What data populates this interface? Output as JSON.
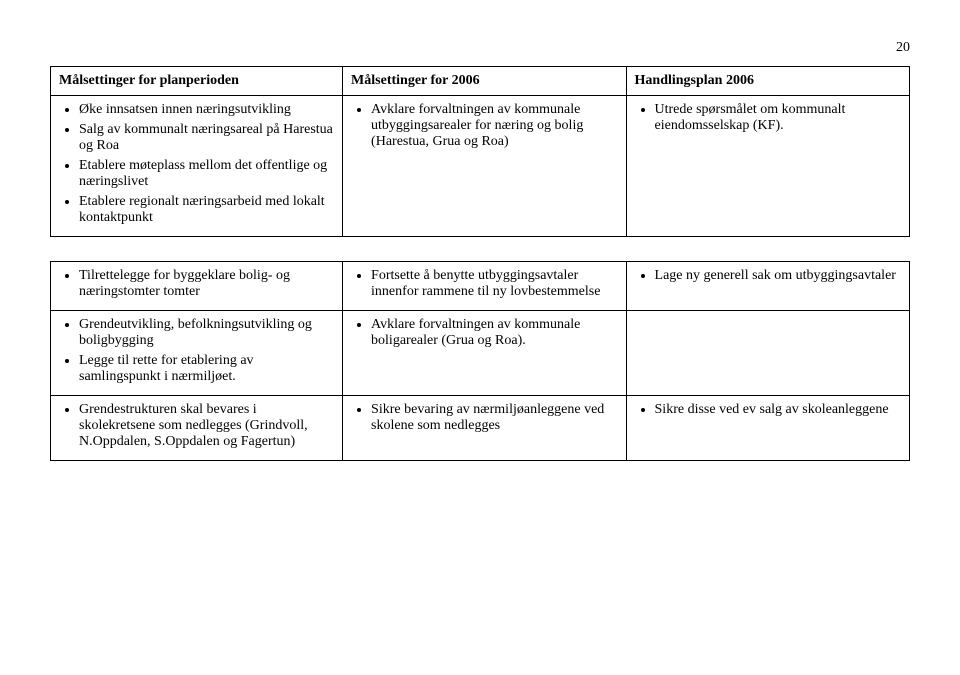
{
  "page_number": "20",
  "headers": {
    "col0": "Målsettinger for planperioden",
    "col1": "Målsettinger for 2006",
    "col2": "Handlingsplan 2006"
  },
  "row1": {
    "c0_i0": "Øke innsatsen innen næringsutvikling",
    "c0_i1": "Salg av kommunalt næringsareal på Harestua og Roa",
    "c0_i2": "Etablere møteplass mellom det offentlige og næringslivet",
    "c0_i3": "Etablere regionalt næringsarbeid med lokalt kontaktpunkt",
    "c1_i0": "Avklare forvaltningen av kommunale utbyggingsarealer for næring og bolig (Harestua, Grua og Roa)",
    "c2_i0": "Utrede spørsmålet om kommunalt eiendomsselskap (KF)."
  },
  "row2": {
    "c0_i0": "Tilrettelegge for byggeklare bolig- og næringstomter tomter",
    "c1_i0": "Fortsette å benytte utbyggingsavtaler innenfor rammene til ny lovbestemmelse",
    "c2_i0": "Lage ny generell sak om utbyggingsavtaler"
  },
  "row3": {
    "c0_i0": "Grendeutvikling, befolkningsutvikling og boligbygging",
    "c0_i1": "Legge til rette for etablering av samlingspunkt i nærmiljøet.",
    "c1_i0": "Avklare forvaltningen av kommunale boligarealer (Grua og Roa)."
  },
  "row4": {
    "c0_i0": "Grendestrukturen skal bevares i skolekretsene som nedlegges (Grindvoll, N.Oppdalen, S.Oppdalen og Fagertun)",
    "c1_i0": "Sikre bevaring av nærmiljøanleggene ved skolene som nedlegges",
    "c2_i0": "Sikre disse ved ev salg av skoleanleggene"
  }
}
